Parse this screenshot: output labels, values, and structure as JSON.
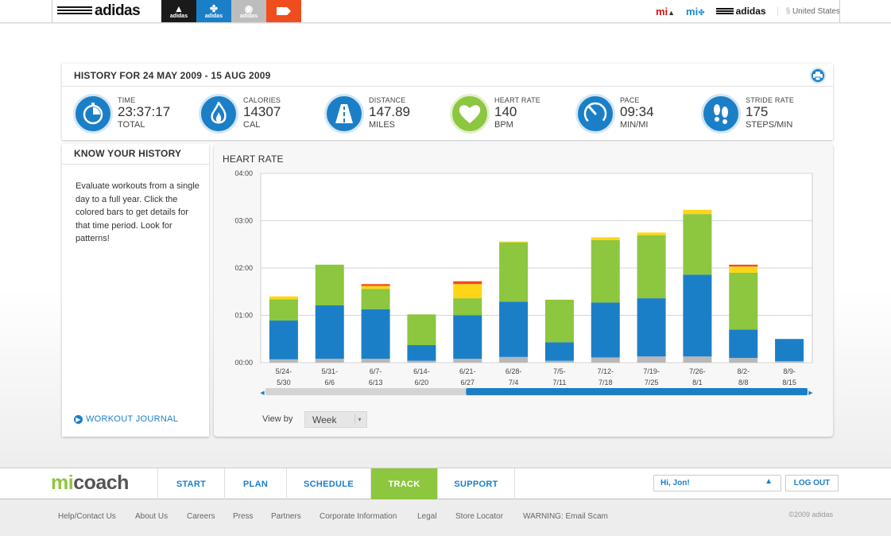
{
  "topbar": {
    "logo": "adidas",
    "brand_tabs": [
      {
        "name": "adidas",
        "color": "#1a1a1a"
      },
      {
        "name": "adidas",
        "color": "#1b7fc8"
      },
      {
        "name": "adidas",
        "color": "#bdbdbd"
      },
      {
        "name": "",
        "color": "#f04d1f"
      }
    ],
    "mi_red": "mi",
    "mi_blue": "mi",
    "adidas_small": "adidas",
    "country": "United States"
  },
  "history": {
    "title": "HISTORY FOR 24 MAY 2009 - 15 AUG 2009",
    "stats": [
      {
        "label": "TIME",
        "value": "23:37:17",
        "unit": "TOTAL",
        "icon": "stopwatch-icon",
        "color": "#1b7fc8"
      },
      {
        "label": "CALORIES",
        "value": "14307",
        "unit": "CAL",
        "icon": "flame-icon",
        "color": "#1b7fc8"
      },
      {
        "label": "DISTANCE",
        "value": "147.89",
        "unit": "MILES",
        "icon": "road-icon",
        "color": "#1b7fc8"
      },
      {
        "label": "HEART RATE",
        "value": "140",
        "unit": "BPM",
        "icon": "heart-icon",
        "color": "#8dc63f"
      },
      {
        "label": "PACE",
        "value": "09:34",
        "unit": "MIN/MI",
        "icon": "gauge-icon",
        "color": "#1b7fc8"
      },
      {
        "label": "STRIDE RATE",
        "value": "175",
        "unit": "STEPS/MIN",
        "icon": "footprints-icon",
        "color": "#1b7fc8"
      }
    ]
  },
  "know": {
    "title": "KNOW YOUR HISTORY",
    "text": "Evaluate workouts from a single day to a full year. Click the colored bars to get details for that time period. Look for patterns!",
    "journal_link": "WORKOUT JOURNAL"
  },
  "chart_data": {
    "type": "bar",
    "title": "HEART RATE",
    "ylabel": "",
    "xlabel": "",
    "ylim_hours": [
      0,
      4
    ],
    "yticks": [
      "00:00",
      "01:00",
      "02:00",
      "03:00",
      "04:00"
    ],
    "categories": [
      [
        "5/24-",
        "5/30"
      ],
      [
        "5/31-",
        "6/6"
      ],
      [
        "6/7-",
        "6/13"
      ],
      [
        "6/14-",
        "6/20"
      ],
      [
        "6/21-",
        "6/27"
      ],
      [
        "6/28-",
        "7/4"
      ],
      [
        "7/5-",
        "7/11"
      ],
      [
        "7/12-",
        "7/18"
      ],
      [
        "7/19-",
        "7/25"
      ],
      [
        "7/26-",
        "8/1"
      ],
      [
        "8/2-",
        "8/8"
      ],
      [
        "8/9-",
        "8/15"
      ]
    ],
    "series": [
      {
        "color": "#b8b8b8",
        "values": [
          0.07,
          0.08,
          0.08,
          0.04,
          0.08,
          0.12,
          0.04,
          0.11,
          0.13,
          0.13,
          0.1,
          0.03
        ]
      },
      {
        "color": "#1b7fc8",
        "values": [
          0.82,
          1.13,
          1.05,
          0.33,
          0.92,
          1.17,
          0.39,
          1.16,
          1.23,
          1.73,
          0.6,
          0.47
        ]
      },
      {
        "color": "#8dc63f",
        "values": [
          0.45,
          0.86,
          0.43,
          0.65,
          0.36,
          1.25,
          0.9,
          1.32,
          1.33,
          1.28,
          1.2,
          0
        ]
      },
      {
        "color": "#ffd617",
        "values": [
          0.06,
          0,
          0.06,
          0,
          0.3,
          0.02,
          0,
          0.06,
          0.06,
          0.09,
          0.13,
          0
        ]
      },
      {
        "color": "#f04d1f",
        "values": [
          0,
          0,
          0.04,
          0,
          0.06,
          0,
          0,
          0,
          0,
          0,
          0.04,
          0
        ]
      }
    ],
    "grid": true,
    "legend": "none"
  },
  "chart_controls": {
    "view_by_label": "View by",
    "view_by_value": "Week",
    "scrollbar_fill": 0.63
  },
  "nav": {
    "logo_mi": "mi",
    "logo_coach": "coach",
    "items": [
      "START",
      "PLAN",
      "SCHEDULE",
      "TRACK",
      "SUPPORT"
    ],
    "active": "TRACK",
    "user_greeting": "Hi, Jon!",
    "logout": "LOG OUT"
  },
  "footer": {
    "links": [
      "Help/Contact Us",
      "About Us",
      "Careers",
      "Press",
      "Partners",
      "Corporate Information",
      "Legal",
      "Store Locator",
      "WARNING: Email Scam"
    ],
    "copyright": "©2009 adidas"
  }
}
